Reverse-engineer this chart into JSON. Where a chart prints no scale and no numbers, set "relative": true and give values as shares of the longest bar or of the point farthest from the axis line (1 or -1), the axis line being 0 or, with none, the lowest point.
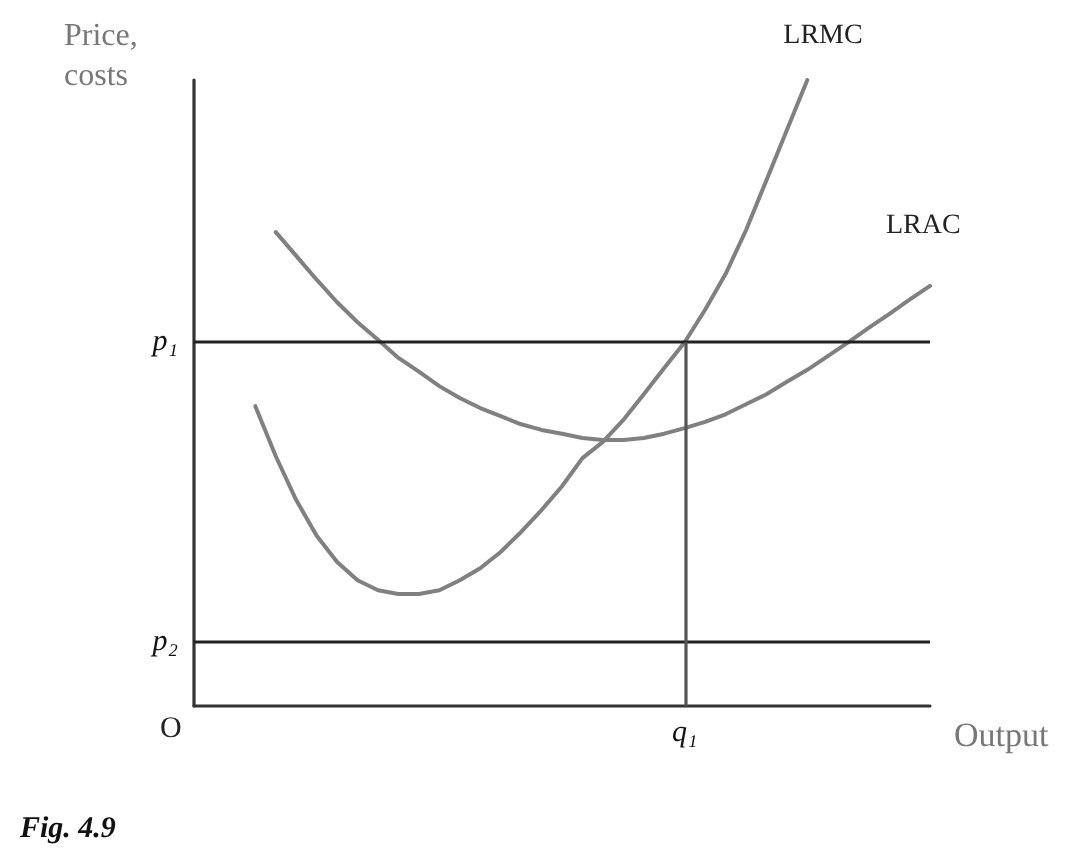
{
  "chart_data": {
    "type": "line",
    "relative": true,
    "ylabel": "Price,\ncosts",
    "xlabel": "Output",
    "categories": [
      null,
      null,
      null,
      null,
      null,
      null,
      null,
      null,
      null,
      null,
      null,
      null,
      null,
      null,
      null,
      null,
      null,
      null,
      null,
      null,
      null,
      null,
      null,
      null,
      null,
      null,
      null,
      null,
      null,
      null,
      null,
      null,
      null,
      null,
      null,
      null,
      null
    ],
    "series": [
      {
        "name": "LRMC",
        "color": "#808080",
        "values": [
          null,
          null,
          null,
          0.479,
          0.399,
          0.329,
          0.272,
          0.23,
          0.201,
          0.185,
          0.179,
          0.179,
          0.185,
          0.201,
          0.22,
          0.246,
          0.278,
          0.313,
          0.351,
          0.396,
          0.422,
          0.457,
          0.498,
          0.54,
          0.581,
          0.633,
          0.69,
          0.76,
          0.84,
          0.92,
          1,
          null,
          null,
          null,
          null,
          null,
          null
        ]
      },
      {
        "name": "LRAC",
        "color": "#808080",
        "values": [
          null,
          null,
          null,
          null,
          0.757,
          0.719,
          0.681,
          0.645,
          0.613,
          0.585,
          0.556,
          0.534,
          0.511,
          0.492,
          0.476,
          0.463,
          0.45,
          0.441,
          0.435,
          0.428,
          0.425,
          0.425,
          0.428,
          0.435,
          0.444,
          0.454,
          0.466,
          0.482,
          0.498,
          0.518,
          0.537,
          0.559,
          0.581,
          0.604,
          0.626,
          0.649,
          0.671
        ]
      }
    ],
    "ref_lines": [
      {
        "axis": "y",
        "value": 0.581,
        "label": "p₁",
        "color": "#222222"
      },
      {
        "axis": "y",
        "value": 0.102,
        "label": "p₂",
        "color": "#222222"
      },
      {
        "axis": "x",
        "value": "q₁",
        "color": "#555555"
      }
    ],
    "annotations": [
      "O",
      "Fig. 4.9"
    ],
    "legend": false,
    "grid": false,
    "marker": "none",
    "line_style": "solid"
  }
}
